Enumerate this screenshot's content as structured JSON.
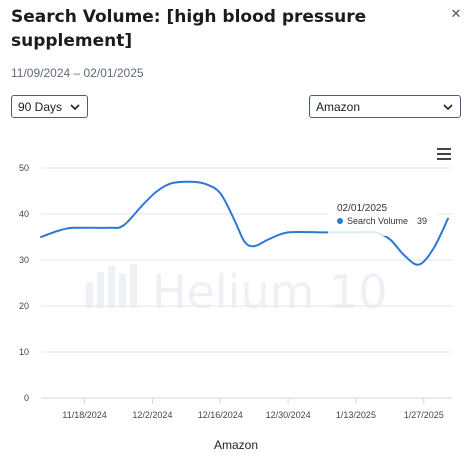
{
  "header": {
    "title": "Search Volume: [high blood pressure supplement]",
    "date_range": "11/09/2024 – 02/01/2025"
  },
  "controls": {
    "period": "90 Days",
    "marketplace": "Amazon"
  },
  "watermark": "Helium 10",
  "colors": {
    "line": "#2c78d4",
    "grid": "#e6e6e6",
    "border": "#4a5d7a"
  },
  "tooltip": {
    "date": "02/01/2025",
    "series": "Search Volume",
    "value": "39"
  },
  "chart_data": {
    "type": "line",
    "xlabel": "Amazon",
    "ylabel": "",
    "ylim": [
      0,
      50
    ],
    "yticks": [
      0,
      10,
      20,
      30,
      40,
      50
    ],
    "xticks": [
      "11/18/2024",
      "12/2/2024",
      "12/16/2024",
      "12/30/2024",
      "1/13/2025",
      "1/27/2025"
    ],
    "xrange": [
      "11/09/2024",
      "02/01/2025"
    ],
    "grid": true,
    "series": [
      {
        "name": "Search Volume",
        "points": [
          [
            "11/09/2024",
            35
          ],
          [
            "11/13/2024",
            36.5
          ],
          [
            "11/16/2024",
            37
          ],
          [
            "11/23/2024",
            37
          ],
          [
            "11/26/2024",
            37.5
          ],
          [
            "11/30/2024",
            42
          ],
          [
            "12/03/2024",
            45
          ],
          [
            "12/06/2024",
            46.7
          ],
          [
            "12/10/2024",
            47
          ],
          [
            "12/13/2024",
            46.5
          ],
          [
            "12/16/2024",
            44.5
          ],
          [
            "12/19/2024",
            38.5
          ],
          [
            "12/21/2024",
            34
          ],
          [
            "12/23/2024",
            33
          ],
          [
            "12/26/2024",
            34.5
          ],
          [
            "12/30/2024",
            36
          ],
          [
            "01/06/2025",
            36
          ],
          [
            "01/10/2025",
            36
          ],
          [
            "01/13/2025",
            36
          ],
          [
            "01/17/2025",
            36
          ],
          [
            "01/20/2025",
            34.5
          ],
          [
            "01/23/2025",
            31
          ],
          [
            "01/26/2025",
            29
          ],
          [
            "01/29/2025",
            32.5
          ],
          [
            "02/01/2025",
            39
          ]
        ]
      }
    ]
  }
}
